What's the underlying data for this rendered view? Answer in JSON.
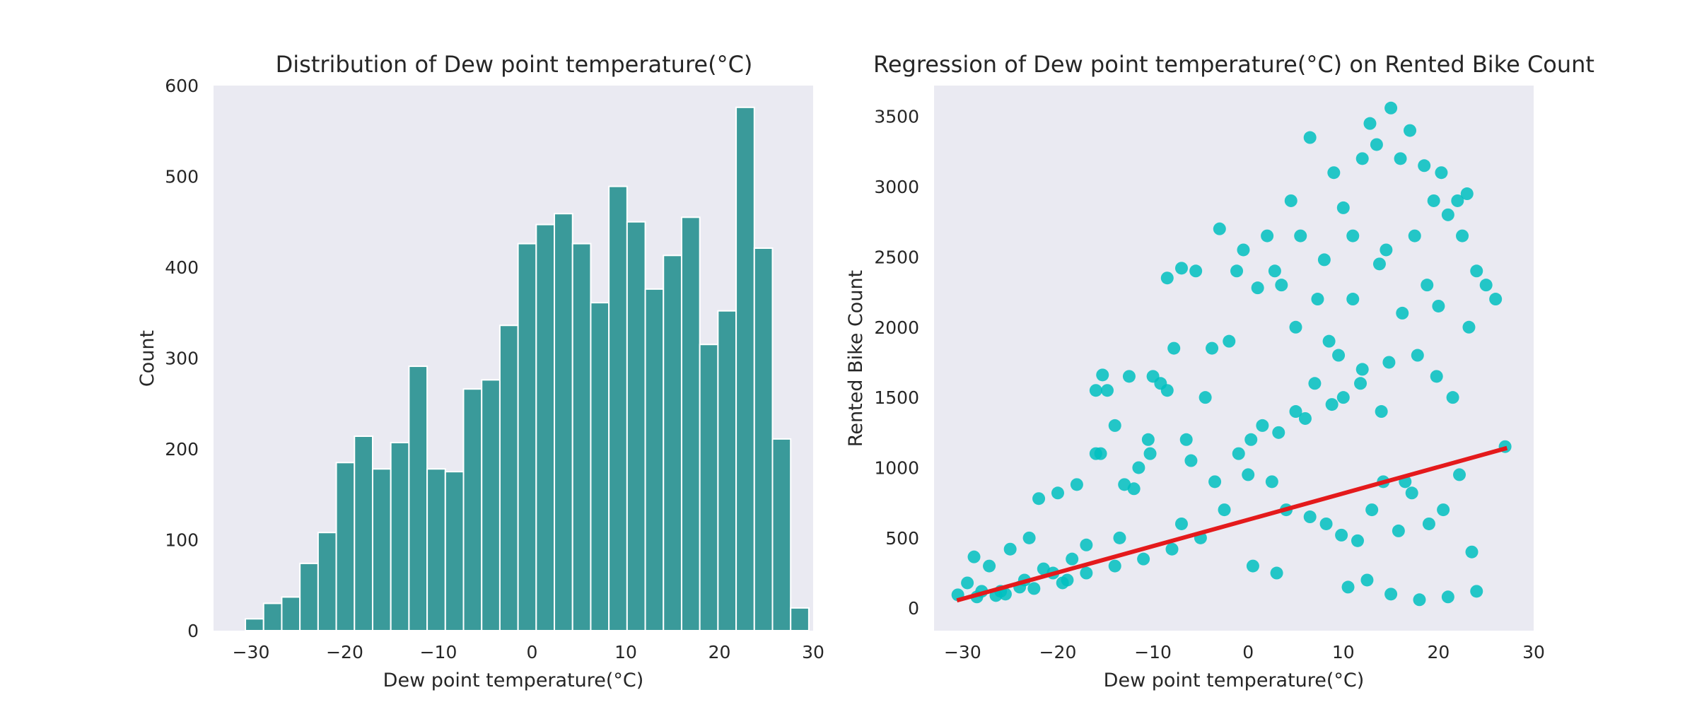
{
  "colors": {
    "panel_background": "#eaeaf2",
    "histogram_bar": "#3a9a9a",
    "bar_edge": "#ffffff",
    "scatter_point": "#00bfbf",
    "regression_line": "#e41a1c",
    "text": "#262626"
  },
  "chart_data": [
    {
      "type": "bar",
      "title": "Distribution of Dew point temperature(°C)",
      "xlabel": "Dew point temperature(°C)",
      "ylabel": "Count",
      "xlim": [
        -34,
        30
      ],
      "ylim": [
        0,
        600
      ],
      "x_ticks": [
        -30,
        -20,
        -10,
        0,
        10,
        20,
        30
      ],
      "x_tick_labels": [
        "−30",
        "−20",
        "−10",
        "0",
        "10",
        "20",
        "30"
      ],
      "y_ticks": [
        0,
        100,
        200,
        300,
        400,
        500,
        600
      ],
      "y_tick_labels": [
        "0",
        "100",
        "200",
        "300",
        "400",
        "500",
        "600"
      ],
      "grid": false,
      "bin_width": 1.94,
      "bin_start": -30.6,
      "values": [
        13,
        30,
        37,
        74,
        108,
        185,
        214,
        178,
        207,
        291,
        178,
        175,
        266,
        276,
        336,
        426,
        447,
        459,
        426,
        361,
        489,
        450,
        376,
        413,
        455,
        315,
        352,
        576,
        421,
        211,
        25
      ]
    },
    {
      "type": "scatter",
      "title": "Regression of Dew point temperature(°C) on Rented Bike Count",
      "xlabel": "Dew point temperature(°C)",
      "ylabel": "Rented Bike Count",
      "xlim": [
        -33,
        30
      ],
      "ylim": [
        -160,
        3720
      ],
      "x_ticks": [
        -30,
        -20,
        -10,
        0,
        10,
        20,
        30
      ],
      "x_tick_labels": [
        "−30",
        "−20",
        "−10",
        "0",
        "10",
        "20",
        "30"
      ],
      "y_ticks": [
        0,
        500,
        1000,
        1500,
        2000,
        2500,
        3000,
        3500
      ],
      "y_tick_labels": [
        "0",
        "500",
        "1000",
        "1500",
        "2000",
        "2500",
        "3000",
        "3500"
      ],
      "grid": false,
      "regression_line": {
        "x": [
          -30.6,
          27.2
        ],
        "y": [
          55,
          1140
        ]
      },
      "points_x": [
        -30.5,
        -29.5,
        -28.8,
        -28,
        -27.2,
        -26.5,
        -25,
        -24,
        -23,
        -22,
        -21.5,
        -20,
        -19,
        -18,
        -17,
        -16,
        -15.3,
        -14.8,
        -14,
        -13,
        -12.5,
        -11.5,
        -10.5,
        -10,
        -9.2,
        -8.5,
        -7.8,
        -7,
        -6.5,
        -5.5,
        -4.5,
        -3.8,
        -3,
        -2,
        -1.2,
        -0.5,
        0.3,
        1,
        2,
        2.8,
        3.5,
        4.5,
        5.5,
        6.5,
        7.3,
        8,
        9,
        10,
        11,
        12,
        12.8,
        13.5,
        14.5,
        15,
        16,
        17,
        17.5,
        18.5,
        19.5,
        20.3,
        21,
        22,
        22.5,
        23,
        24,
        25,
        26,
        27,
        -6,
        -8.5,
        -10.3,
        -12,
        -15.5,
        -16,
        2.5,
        4,
        6.5,
        8.2,
        9.8,
        11.5,
        13,
        14.2,
        15.8,
        17.2,
        19,
        20.5,
        22.2,
        23.5,
        0.5,
        3,
        10.5,
        12.5,
        15,
        18,
        21,
        24,
        16.5,
        14,
        9.5,
        7,
        5,
        1.5,
        -1,
        -3.5,
        -7,
        -13.5,
        -18.5,
        -20.5,
        -23.5,
        -26,
        -28.5,
        5,
        8.5,
        11,
        13.8,
        16.2,
        18.8,
        20,
        23.2,
        12,
        10,
        6,
        3.2,
        0,
        -2.5,
        -5,
        -8,
        -11,
        -14,
        -17,
        -19.5,
        -22.5,
        -25.5,
        21.5,
        19.8,
        17.8,
        14.8,
        11.8,
        8.8
      ],
      "points_y": [
        95,
        180,
        365,
        120,
        300,
        90,
        420,
        150,
        500,
        780,
        280,
        820,
        200,
        880,
        450,
        1100,
        1660,
        1550,
        1300,
        880,
        1650,
        1000,
        1200,
        1650,
        1600,
        2350,
        1850,
        2420,
        1200,
        2400,
        1500,
        1850,
        2700,
        1900,
        2400,
        2550,
        1200,
        2280,
        2650,
        2400,
        2300,
        2900,
        2650,
        3350,
        2200,
        2480,
        3100,
        2850,
        2650,
        3200,
        3450,
        3300,
        2550,
        3560,
        3200,
        3400,
        2650,
        3150,
        2900,
        3100,
        2800,
        2900,
        2650,
        2950,
        2400,
        2300,
        2200,
        1150,
        1050,
        1550,
        1100,
        850,
        1100,
        1550,
        900,
        700,
        650,
        600,
        520,
        480,
        700,
        900,
        550,
        820,
        600,
        700,
        950,
        400,
        300,
        250,
        150,
        200,
        100,
        60,
        80,
        120,
        900,
        1400,
        1800,
        1600,
        1400,
        1300,
        1100,
        900,
        600,
        500,
        350,
        250,
        200,
        120,
        80,
        2000,
        1900,
        2200,
        2450,
        2100,
        2300,
        2150,
        2000,
        1700,
        1500,
        1350,
        1250,
        950,
        700,
        500,
        420,
        350,
        300,
        250,
        180,
        140,
        100,
        1500,
        1650,
        1800,
        1750,
        1600,
        1450
      ]
    }
  ]
}
